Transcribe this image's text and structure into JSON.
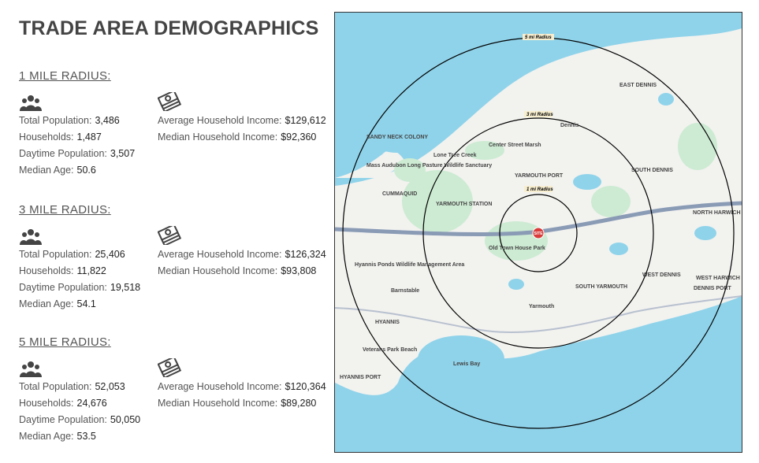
{
  "title": "TRADE AREA DEMOGRAPHICS",
  "sections": [
    {
      "heading": "1 MILE RADIUS:",
      "total_population_label": "Total Population:",
      "total_population": "3,486",
      "households_label": "Households:",
      "households": "1,487",
      "daytime_population_label": "Daytime Population:",
      "daytime_population": "3,507",
      "median_age_label": "Median Age:",
      "median_age": "50.6",
      "avg_income_label": "Average Household Income:",
      "avg_income": "$129,612",
      "median_income_label": "Median Household Income:",
      "median_income": "$92,360"
    },
    {
      "heading": "3 MILE RADIUS:",
      "total_population_label": "Total Population:",
      "total_population": "25,406",
      "households_label": "Households:",
      "households": "11,822",
      "daytime_population_label": "Daytime Population:",
      "daytime_population": "19,518",
      "median_age_label": "Median Age:",
      "median_age": "54.1",
      "avg_income_label": "Average Household Income:",
      "avg_income": "$126,324",
      "median_income_label": "Median Household Income:",
      "median_income": "$93,808"
    },
    {
      "heading": "5 MILE RADIUS:",
      "total_population_label": "Total Population:",
      "total_population": "52,053",
      "households_label": "Households:",
      "households": "24,676",
      "daytime_population_label": "Daytime Population:",
      "daytime_population": "50,050",
      "median_age_label": "Median Age:",
      "median_age": "53.5",
      "avg_income_label": "Average Household Income:",
      "avg_income": "$120,364",
      "median_income_label": "Median Household Income:",
      "median_income": "$89,280"
    }
  ],
  "icons": {
    "population": "people-group-icon",
    "income": "money-stack-icon"
  },
  "map": {
    "radius_labels": [
      "1 mi Radius",
      "3 mi Radius",
      "5 mi Radius"
    ],
    "site_label": "SITE",
    "places": [
      "Dennis",
      "EAST DENNIS",
      "SOUTH DENNIS",
      "YARMOUTH PORT",
      "YARMOUTH STATION",
      "CUMMAQUID",
      "SANDY NECK COLONY",
      "Barnstable",
      "HYANNIS",
      "HYANNIS PORT",
      "Yarmouth",
      "SOUTH YARMOUTH",
      "WEST DENNIS",
      "DENNIS PORT",
      "WEST HARWICH",
      "NORTH HARWICH",
      "Old Town House Park",
      "Hyannis Ponds Wildlife Management Area",
      "Mass Audubon Long Pasture Wildlife Sanctuary",
      "Center Street Marsh",
      "Veterans Park Beach",
      "Lewis Bay",
      "Lone Tree Creek"
    ],
    "colors": {
      "water": "#8fd3ea",
      "land": "#f2f2ef",
      "park": "#cdebd3",
      "highway": "#8a9bb5",
      "site": "#d93a3a"
    }
  }
}
